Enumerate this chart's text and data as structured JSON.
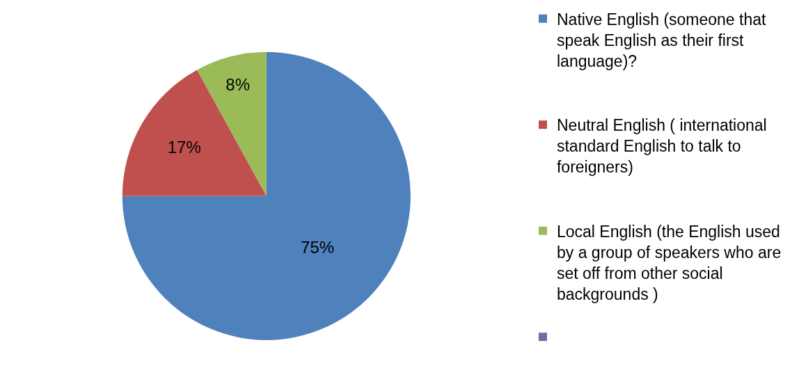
{
  "chart_data": {
    "type": "pie",
    "categories": [
      "Native English (someone that speak English as their first language)?",
      "Neutral English ( international standard English to talk to foreigners)",
      "Local English (the English used by a group of speakers who are set off from other social backgrounds )",
      null
    ],
    "values": [
      75,
      17,
      8,
      0
    ],
    "colors": [
      "#4f81bd",
      "#c0504d",
      "#9bbb59",
      "#8064a2"
    ],
    "value_labels": [
      "75%",
      "17%",
      "8%",
      null
    ],
    "legend": "right"
  }
}
